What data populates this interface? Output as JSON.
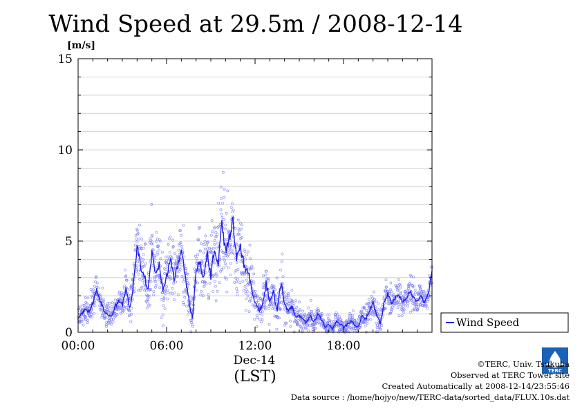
{
  "chart_data": {
    "type": "scatter",
    "title": "Wind Speed at 29.5m / 2008-12-14",
    "ylabel": "[m/s]",
    "xlabel": "(LST)",
    "date_label": "Dec-14",
    "xlim": [
      0,
      24
    ],
    "ylim": [
      0,
      15
    ],
    "y_ticks": [
      0,
      5,
      10,
      15
    ],
    "y_minor_step": 1,
    "x_ticks": [
      {
        "hour": 0,
        "label": "00:00"
      },
      {
        "hour": 6,
        "label": "06:00"
      },
      {
        "hour": 12,
        "label": "12:00"
      },
      {
        "hour": 18,
        "label": "18:00"
      }
    ],
    "grid": true,
    "legend_position": "right",
    "series": [
      {
        "name": "Wind Speed",
        "kind": "mean-line-with-raw-scatter",
        "line_color": "#1f1fe6",
        "point_color": "#7b7bf2",
        "sample_interval_s": 10,
        "x": [
          0.0,
          0.25,
          0.5,
          0.75,
          1.0,
          1.25,
          1.5,
          1.75,
          2.0,
          2.25,
          2.5,
          2.75,
          3.0,
          3.25,
          3.5,
          3.75,
          4.0,
          4.25,
          4.5,
          4.75,
          5.0,
          5.25,
          5.5,
          5.75,
          6.0,
          6.25,
          6.5,
          6.75,
          7.0,
          7.25,
          7.5,
          7.75,
          8.0,
          8.25,
          8.5,
          8.75,
          9.0,
          9.25,
          9.5,
          9.75,
          10.0,
          10.25,
          10.5,
          10.75,
          11.0,
          11.25,
          11.5,
          11.75,
          12.0,
          12.25,
          12.5,
          12.75,
          13.0,
          13.25,
          13.5,
          13.75,
          14.0,
          14.25,
          14.5,
          14.75,
          15.0,
          15.25,
          15.5,
          15.75,
          16.0,
          16.25,
          16.5,
          16.75,
          17.0,
          17.25,
          17.5,
          17.75,
          18.0,
          18.25,
          18.5,
          18.75,
          19.0,
          19.25,
          19.5,
          19.75,
          20.0,
          20.25,
          20.5,
          20.75,
          21.0,
          21.25,
          21.5,
          21.75,
          22.0,
          22.25,
          22.5,
          22.75,
          23.0,
          23.25,
          23.5,
          23.75,
          24.0
        ],
        "values": [
          0.8,
          1.0,
          1.3,
          1.1,
          1.6,
          2.3,
          1.7,
          1.2,
          1.0,
          0.8,
          1.4,
          1.7,
          1.5,
          2.4,
          1.3,
          2.6,
          4.8,
          3.6,
          3.1,
          2.2,
          4.4,
          3.2,
          3.7,
          2.2,
          3.1,
          4.1,
          2.9,
          3.6,
          4.4,
          3.2,
          1.8,
          0.7,
          3.5,
          3.9,
          3.0,
          4.3,
          3.1,
          4.7,
          3.7,
          6.0,
          4.4,
          5.2,
          6.2,
          3.9,
          4.7,
          3.7,
          3.4,
          2.5,
          1.6,
          1.2,
          1.5,
          2.7,
          1.7,
          2.2,
          1.1,
          2.7,
          1.6,
          1.2,
          1.4,
          0.8,
          0.9,
          0.7,
          0.5,
          0.9,
          0.6,
          1.0,
          0.7,
          0.3,
          0.4,
          0.2,
          0.6,
          0.5,
          0.3,
          0.4,
          0.6,
          0.4,
          0.3,
          0.9,
          0.7,
          1.2,
          1.6,
          0.9,
          0.5,
          1.6,
          2.1,
          1.6,
          1.9,
          2.0,
          1.6,
          1.9,
          2.2,
          1.9,
          1.7,
          2.0,
          1.6,
          2.1,
          3.4
        ],
        "spread": [
          0.3,
          0.3,
          0.35,
          0.3,
          0.4,
          0.45,
          0.4,
          0.35,
          0.3,
          0.3,
          0.35,
          0.4,
          0.4,
          0.5,
          0.45,
          0.6,
          1.0,
          0.9,
          0.9,
          0.8,
          1.0,
          0.9,
          0.9,
          0.8,
          0.9,
          0.9,
          0.8,
          0.9,
          1.0,
          0.9,
          0.7,
          0.5,
          0.9,
          0.9,
          0.8,
          1.0,
          0.9,
          1.1,
          1.0,
          1.4,
          1.2,
          1.3,
          1.5,
          1.1,
          1.1,
          1.0,
          0.9,
          0.8,
          0.6,
          0.5,
          0.6,
          0.8,
          0.6,
          0.7,
          0.5,
          0.8,
          0.6,
          0.5,
          0.5,
          0.35,
          0.35,
          0.3,
          0.3,
          0.35,
          0.3,
          0.35,
          0.3,
          0.25,
          0.25,
          0.2,
          0.3,
          0.3,
          0.25,
          0.25,
          0.3,
          0.25,
          0.25,
          0.3,
          0.3,
          0.35,
          0.4,
          0.35,
          0.3,
          0.4,
          0.4,
          0.35,
          0.4,
          0.4,
          0.35,
          0.35,
          0.4,
          0.35,
          0.35,
          0.35,
          0.3,
          0.35,
          0.4
        ]
      }
    ]
  },
  "credits": {
    "copyright": "©TERC, Univ. Tsukuba",
    "observed": "Observed at TERC Tower site",
    "created": "Created Automatically at 2008-12-14/23:55:46",
    "source": "Data source : /home/hojyo/new/TERC-data/sorted_data/FLUX.10s.dat"
  },
  "logo": {
    "text": "TERC",
    "color": "#1a62b8"
  }
}
